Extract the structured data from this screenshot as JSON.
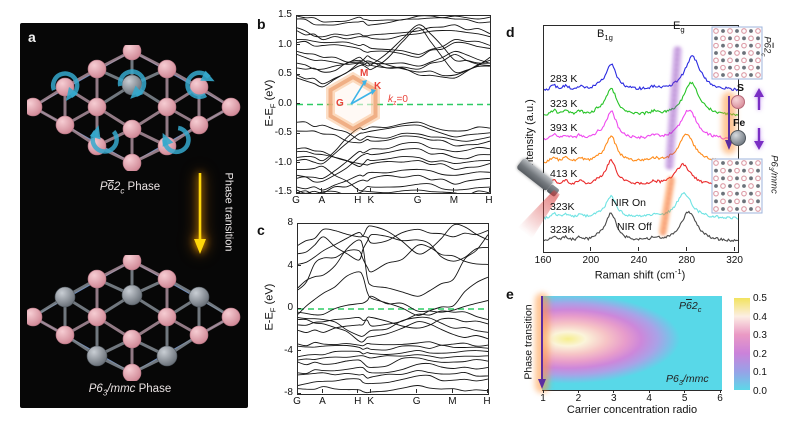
{
  "panel_labels": {
    "a": "a",
    "b": "b",
    "c": "c",
    "d": "d",
    "e": "e"
  },
  "panel_a": {
    "phase_top": {
      "p": "P",
      "six": "6",
      "two": "2",
      "sub": "c",
      "word": " Phase"
    },
    "phase_bottom": {
      "p": "P",
      "six": "6",
      "sub": "3",
      "rest": "/mmc",
      "word": " Phase"
    },
    "transition_label": "Phase transition",
    "colors": {
      "s_atom": "#e2a3ae",
      "fe_atom": "#8a9098",
      "transition_arrow": "#ffd70a",
      "spin_curl": "#35a8cc"
    }
  },
  "panel_b": {
    "ylabel": {
      "main": "E-E",
      "sub": "F",
      "unit": " (eV)"
    },
    "yticks": [
      "1.5",
      "1.0",
      "0.5",
      "0.0",
      "-0.5",
      "-1.0",
      "-1.5"
    ],
    "xticks": [
      "G",
      "A",
      "H",
      "K",
      "G",
      "M",
      "H"
    ],
    "inset": {
      "m": "M",
      "k": "K",
      "g": "G",
      "kz_k": "k",
      "kz_sub": "z",
      "kz_eq": "=0"
    }
  },
  "panel_c": {
    "ylabel": {
      "main": "E-E",
      "sub": "F",
      "unit": " (eV)"
    },
    "yticks": [
      "8",
      "4",
      "0",
      "-4",
      "-8"
    ],
    "xticks": [
      "G",
      "A",
      "H",
      "K",
      "G",
      "M",
      "H"
    ]
  },
  "panel_d": {
    "ylabel": "Intensity (a.u.)",
    "xlabel": {
      "pre": "Raman shift  (cm",
      "sup": "-1",
      "post": ")"
    },
    "xticks": [
      "160",
      "200",
      "240",
      "280",
      "320"
    ],
    "peak_b1g": {
      "main": "B",
      "sub": "1g"
    },
    "peak_eg": {
      "main": "E",
      "sub": "g"
    },
    "nir_on": "NIR On",
    "nir_off": "NIR Off",
    "legend": {
      "s": "S",
      "fe": "Fe"
    },
    "inset_top_label": {
      "p": "P",
      "six": "6",
      "two": "2",
      "sub": "c"
    },
    "inset_bottom_label": {
      "p": "P",
      "six": "6",
      "sub": "3",
      "rest": "/",
      "mmc": "mmc"
    }
  },
  "panel_e": {
    "ylabel": "Phase transition",
    "xlabel": "Carrier concentration radio",
    "xticks": [
      "1",
      "2",
      "3",
      "4",
      "5",
      "6"
    ],
    "colorbar_ticks": [
      "0.5",
      "0.4",
      "0.3",
      "0.2",
      "0.1",
      "0.0"
    ],
    "label_top": {
      "p": "P",
      "six": "6",
      "two": "2",
      "sub": "c"
    },
    "label_bottom": {
      "p": "P",
      "six": "6",
      "sub": "3",
      "rest": "/mmc"
    }
  },
  "chart_data": [
    {
      "panel": "b",
      "type": "line",
      "kind": "band-structure",
      "x_tick_labels": [
        "G",
        "A",
        "H",
        "K",
        "G",
        "M",
        "H"
      ],
      "k_fractions": [
        0,
        0.134,
        0.32,
        0.388,
        0.63,
        0.818,
        1
      ],
      "ylim": [
        -1.5,
        1.5
      ],
      "ylabel": "E-EF (eV)",
      "fermi_level": 0.0,
      "fermi_line_color": "#2ecb63",
      "band_gap_approx_eV": 0.55,
      "bands_eV": [
        [
          0.45,
          0.3,
          0.65,
          0.6,
          1.3,
          0.55,
          0.65
        ],
        [
          0.5,
          0.35,
          0.7,
          0.68,
          1.35,
          0.75,
          0.7
        ],
        [
          0.62,
          0.55,
          0.75,
          0.72,
          0.5,
          0.45,
          0.75
        ],
        [
          0.7,
          0.6,
          0.8,
          0.78,
          0.55,
          0.5,
          0.8
        ],
        [
          0.85,
          0.75,
          0.7,
          0.66,
          0.6,
          0.85,
          0.66
        ],
        [
          0.9,
          0.8,
          0.72,
          0.7,
          0.65,
          0.9,
          0.7
        ],
        [
          1.05,
          1.0,
          0.95,
          0.9,
          0.8,
          1.05,
          0.95
        ],
        [
          1.1,
          1.05,
          1.0,
          0.95,
          0.85,
          1.1,
          1.0
        ],
        [
          1.25,
          1.1,
          1.15,
          1.12,
          1.2,
          1.25,
          1.15
        ],
        [
          1.3,
          1.15,
          1.2,
          1.18,
          1.25,
          1.35,
          1.2
        ],
        [
          1.45,
          1.35,
          1.4,
          1.35,
          1.45,
          1.45,
          1.4
        ],
        [
          1.5,
          1.4,
          1.48,
          1.42,
          1.5,
          1.5,
          1.48
        ],
        [
          -0.9,
          -0.95,
          -0.4,
          -0.38,
          -0.3,
          -0.45,
          -0.4
        ],
        [
          -0.95,
          -1.0,
          -0.5,
          -0.45,
          -0.35,
          -0.55,
          -0.48
        ],
        [
          -0.3,
          -0.35,
          -0.6,
          -0.55,
          -0.5,
          -0.6,
          -0.55
        ],
        [
          -0.45,
          -0.5,
          -0.65,
          -0.62,
          -0.55,
          -0.7,
          -0.62
        ],
        [
          -1.2,
          -1.25,
          -0.8,
          -0.75,
          -0.65,
          -0.8,
          -0.75
        ],
        [
          -1.25,
          -1.3,
          -0.9,
          -0.85,
          -0.75,
          -0.9,
          -0.85
        ],
        [
          -0.75,
          -0.8,
          -1.0,
          -0.95,
          -0.9,
          -1.0,
          -0.95
        ],
        [
          -0.8,
          -0.85,
          -1.05,
          -1.0,
          -0.95,
          -1.1,
          -1.0
        ],
        [
          -1.4,
          -1.45,
          -1.2,
          -1.15,
          -1.1,
          -1.2,
          -1.15
        ],
        [
          -1.45,
          -1.5,
          -1.3,
          -1.25,
          -1.2,
          -1.35,
          -1.25
        ],
        [
          -1.1,
          -1.05,
          -1.45,
          -1.4,
          -1.35,
          -1.45,
          -1.4
        ],
        [
          -1.5,
          -1.48,
          -1.5,
          -1.48,
          -1.45,
          -1.5,
          -1.5
        ]
      ]
    },
    {
      "panel": "c",
      "type": "line",
      "kind": "band-structure",
      "x_tick_labels": [
        "G",
        "A",
        "H",
        "K",
        "G",
        "M",
        "H"
      ],
      "k_fractions": [
        0,
        0.134,
        0.32,
        0.388,
        0.63,
        0.818,
        1
      ],
      "ylim": [
        -8,
        8
      ],
      "ylabel": "E-EF (eV)",
      "fermi_level": 0.0,
      "fermi_line_color": "#2ecb63",
      "metallic": true,
      "bands_eV": [
        [
          6.0,
          7.5,
          6.8,
          7.8,
          5.2,
          7.9,
          6.5
        ],
        [
          5.2,
          6.8,
          4.6,
          7.0,
          6.5,
          4.5,
          5.8
        ],
        [
          1.8,
          4.8,
          5.5,
          3.5,
          6.0,
          5.0,
          4.2
        ],
        [
          2.0,
          3.2,
          6.5,
          2.2,
          1.2,
          2.8,
          7.0
        ],
        [
          4.2,
          5.5,
          7.2,
          6.2,
          7.5,
          6.8,
          7.4
        ],
        [
          -0.5,
          1.5,
          3.5,
          1.0,
          -0.6,
          0.3,
          3.0
        ],
        [
          -0.3,
          -0.5,
          0.5,
          1.2,
          -0.2,
          -0.1,
          0.8
        ],
        [
          -1.5,
          -1.2,
          -0.8,
          -1.6,
          -0.5,
          -0.3,
          -1.0
        ],
        [
          -0.8,
          -1.0,
          -2.5,
          -2.0,
          -0.8,
          -1.8,
          -2.2
        ],
        [
          -1.0,
          -1.4,
          -3.0,
          -2.6,
          -1.2,
          -2.4,
          -2.8
        ],
        [
          -2.0,
          -2.2,
          -1.5,
          -0.8,
          -1.8,
          -0.9,
          -1.4
        ],
        [
          -3.3,
          -3.3,
          -3.4,
          -3.3,
          -3.2,
          -3.3,
          -3.4
        ],
        [
          -3.5,
          -3.5,
          -3.6,
          -3.8,
          -3.5,
          -3.6,
          -3.7
        ],
        [
          -4.5,
          -4.3,
          -4.0,
          -4.2,
          -3.9,
          -4.1,
          -4.0
        ],
        [
          -4.8,
          -4.6,
          -4.4,
          -4.6,
          -4.3,
          -4.5,
          -4.4
        ],
        [
          -5.0,
          -5.2,
          -4.8,
          -5.5,
          -4.6,
          -5.0,
          -4.9
        ],
        [
          -6.0,
          -5.8,
          -5.5,
          -6.0,
          -5.2,
          -5.6,
          -5.5
        ],
        [
          -6.2,
          -6.0,
          -6.2,
          -6.4,
          -5.8,
          -6.1,
          -6.3
        ],
        [
          -7.2,
          -6.8,
          -6.6,
          -7.0,
          -6.3,
          -6.7,
          -6.6
        ],
        [
          -7.5,
          -7.3,
          -7.6,
          -7.8,
          -7.2,
          -7.5,
          -7.7
        ]
      ]
    },
    {
      "panel": "d",
      "type": "line",
      "kind": "raman-spectra",
      "xlabel": "Raman shift (cm-1)",
      "ylabel": "Intensity (a.u.)",
      "xlim": [
        160,
        322
      ],
      "x_ticks": [
        160,
        200,
        240,
        280,
        320
      ],
      "peaks": {
        "B1g_cm1": 216,
        "Eg_cm1": 282
      },
      "curves": [
        {
          "label": "283 K",
          "color": "#2a2ae0",
          "eg_center": 284,
          "b1g_amp": 26,
          "eg_amp": 34
        },
        {
          "label": "323 K",
          "color": "#27c427",
          "eg_center": 283,
          "b1g_amp": 27,
          "eg_amp": 33
        },
        {
          "label": "393 K",
          "color": "#ef49ef",
          "eg_center": 281,
          "b1g_amp": 28,
          "eg_amp": 30
        },
        {
          "label": "403 K",
          "color": "#ff8c1c",
          "eg_center": 279,
          "b1g_amp": 26,
          "eg_amp": 28
        },
        {
          "label": "413 K",
          "color": "#ea2a2a",
          "eg_center": 276,
          "b1g_amp": 25,
          "eg_amp": 21
        },
        {
          "label": "323K",
          "color": "#6fe3e3",
          "eg_center": 277,
          "b1g_amp": 22,
          "eg_amp": 25,
          "note": "NIR On"
        },
        {
          "label": "323K",
          "color": "#4a4a4a",
          "eg_center": 281,
          "b1g_amp": 28,
          "eg_amp": 30,
          "note": "NIR Off"
        }
      ]
    },
    {
      "panel": "e",
      "type": "heatmap",
      "xlabel": "Carrier concentration radio",
      "ylabel": "Phase transition",
      "xlim": [
        1,
        6
      ],
      "x_ticks": [
        1,
        2,
        3,
        4,
        5,
        6
      ],
      "value_range": [
        0.0,
        0.5
      ],
      "colorbar_ticks": [
        0.5,
        0.4,
        0.3,
        0.2,
        0.1,
        0.0
      ],
      "hot_spot": {
        "x_center": 1.7,
        "y_center_frac": 0.45,
        "peak_value": 0.5
      },
      "background_value": 0.0,
      "phase_label_top": "P-62c",
      "phase_label_bottom": "P63/mmc"
    }
  ]
}
